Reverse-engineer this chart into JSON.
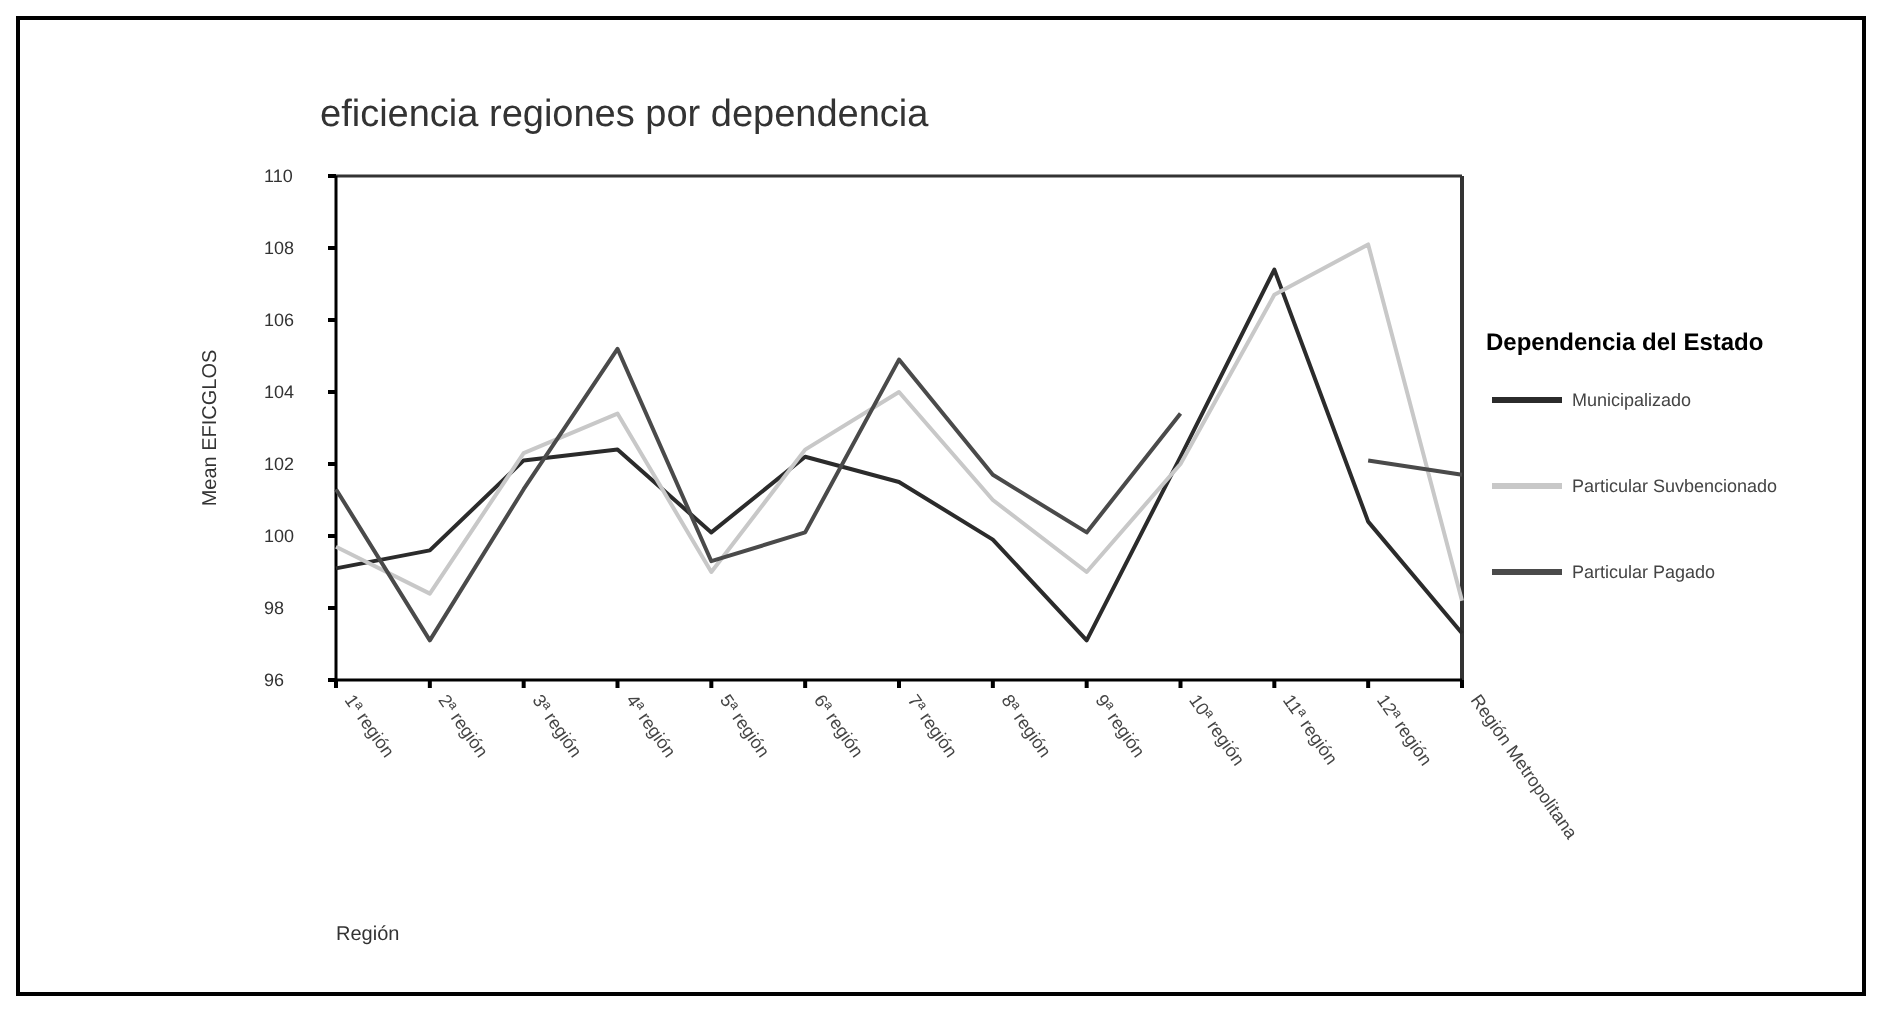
{
  "chart_data": {
    "type": "line",
    "title": "eficiencia regiones por dependencia",
    "xlabel": "Región",
    "ylabel": "Mean EFICGLOS",
    "legend_title": "Dependencia del Estado",
    "legend": "right",
    "grid": false,
    "categories": [
      "1ª región",
      "2ª región",
      "3ª región",
      "4ª región",
      "5ª región",
      "6ª región",
      "7ª región",
      "8ª región",
      "9ª región",
      "10ª región",
      "11ª región",
      "12ª región",
      "Región Metropolitana"
    ],
    "ylim": [
      96,
      110
    ],
    "yticks": [
      96,
      98,
      100,
      102,
      104,
      106,
      108,
      110
    ],
    "series": [
      {
        "name": "Municipalizado",
        "color": "#2b2b2b",
        "values": [
          99.1,
          99.6,
          102.1,
          102.4,
          100.1,
          102.2,
          101.5,
          99.9,
          97.1,
          102.2,
          107.4,
          100.4,
          97.3
        ]
      },
      {
        "name": "Particular Suvbencionado",
        "color": "#c8c8c8",
        "values": [
          99.7,
          98.4,
          102.3,
          103.4,
          99.0,
          102.4,
          104.0,
          101.0,
          99.0,
          102.0,
          106.7,
          108.1,
          98.2
        ]
      },
      {
        "name": "Particular Pagado",
        "color": "#4a4a4a",
        "values": [
          101.3,
          97.1,
          101.3,
          105.2,
          99.3,
          100.1,
          104.9,
          101.7,
          100.1,
          103.4,
          null,
          102.1,
          101.7
        ]
      }
    ]
  }
}
